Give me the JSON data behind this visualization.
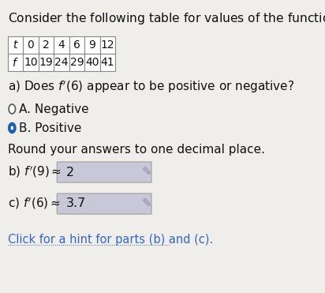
{
  "title": "Consider the following table for values of the function $f$.",
  "table_t": [
    "$t$",
    "0",
    "2",
    "4",
    "6",
    "9",
    "12"
  ],
  "table_f": [
    "$f$",
    "10",
    "19",
    "24",
    "29",
    "40",
    "41"
  ],
  "part_a_text": "a) Does $f'(6)$ appear to be positive or negative?",
  "option_a": "A. Negative",
  "option_b": "B. Positive",
  "round_text": "Round your answers to one decimal place.",
  "part_b_label": "b) $f'(9) \\approx$",
  "part_b_value": "2",
  "part_c_label": "c) $f'(6) \\approx$",
  "part_c_value": "3.7",
  "hint_text": "Click for a hint for parts (b) and (c).",
  "bg_color": "#f0eeeb",
  "box_color": "#c8c8d8",
  "table_border": "#888888",
  "text_color": "#111111",
  "hint_color": "#3366cc",
  "selected_dot_color": "#1a5fb4",
  "unselected_dot_color": "#ffffff",
  "pencil_color": "#8888aa"
}
